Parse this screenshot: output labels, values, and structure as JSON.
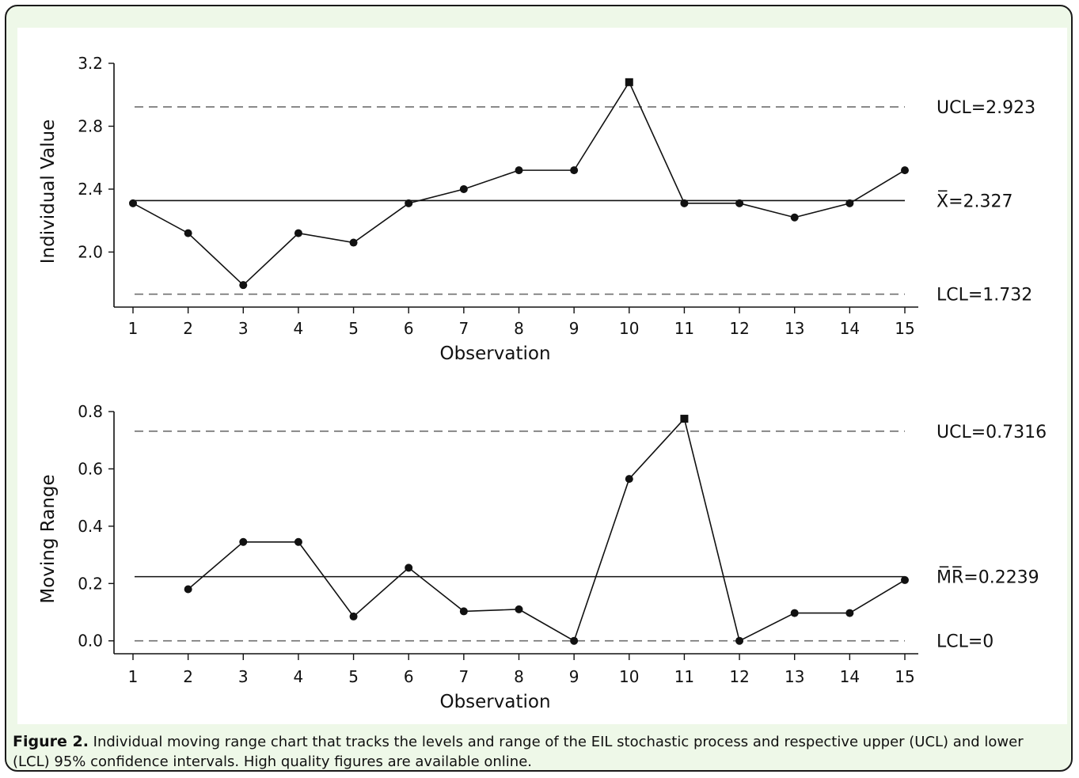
{
  "caption": {
    "label": "Figure 2.",
    "text": " Individual moving range chart that tracks the levels and range of the EIL stochastic process and respective upper (UCL) and lower (LCL) 95% confidence intervals. High quality figures are available online."
  },
  "colors": {
    "frame_bg": "#eef8e8",
    "line": "#111111",
    "limit_dash": "#6f6f6f"
  },
  "chart_data": [
    {
      "type": "line",
      "chart": "individual-value",
      "ylabel": "Individual Value",
      "xlabel": "Observation",
      "x": [
        1,
        2,
        3,
        4,
        5,
        6,
        7,
        8,
        9,
        10,
        11,
        12,
        13,
        14,
        15
      ],
      "values": [
        2.31,
        2.12,
        1.79,
        2.12,
        2.06,
        2.31,
        2.4,
        2.52,
        2.52,
        3.08,
        2.31,
        2.31,
        2.22,
        2.31,
        2.52
      ],
      "out_of_control_index": [
        10
      ],
      "ylim": [
        1.65,
        3.2
      ],
      "yticks": [
        2.0,
        2.4,
        2.8,
        3.2
      ],
      "ytick_labels": [
        "2.0",
        "2.4",
        "2.8",
        "3.2"
      ],
      "center": {
        "value": 2.327,
        "label": "X̅=2.327"
      },
      "ucl": {
        "value": 2.923,
        "label": "UCL=2.923"
      },
      "lcl": {
        "value": 1.732,
        "label": "LCL=1.732"
      }
    },
    {
      "type": "line",
      "chart": "moving-range",
      "ylabel": "Moving Range",
      "xlabel": "Observation",
      "x": [
        2,
        3,
        4,
        5,
        6,
        7,
        8,
        9,
        10,
        11,
        12,
        13,
        14,
        15
      ],
      "values": [
        0.18,
        0.345,
        0.345,
        0.085,
        0.255,
        0.103,
        0.11,
        0.0,
        0.565,
        0.775,
        0.0,
        0.097,
        0.097,
        0.212
      ],
      "out_of_control_index": [
        11
      ],
      "ylim": [
        -0.045,
        0.8
      ],
      "yticks": [
        0.0,
        0.2,
        0.4,
        0.6,
        0.8
      ],
      "ytick_labels": [
        "0.0",
        "0.2",
        "0.4",
        "0.6",
        "0.8"
      ],
      "center": {
        "value": 0.2239,
        "label": "M̅R̅=0.2239"
      },
      "ucl": {
        "value": 0.7316,
        "label": "UCL=0.7316"
      },
      "lcl": {
        "value": 0,
        "label": "LCL=0"
      }
    }
  ]
}
